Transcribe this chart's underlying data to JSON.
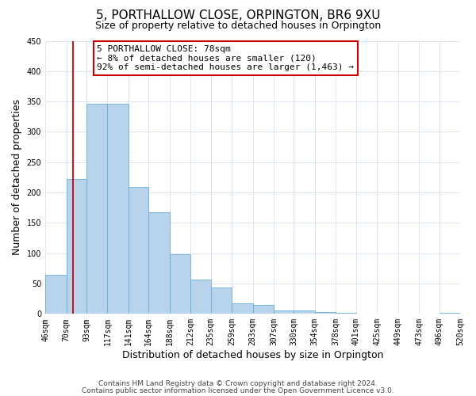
{
  "title": "5, PORTHALLOW CLOSE, ORPINGTON, BR6 9XU",
  "subtitle": "Size of property relative to detached houses in Orpington",
  "xlabel": "Distribution of detached houses by size in Orpington",
  "ylabel": "Number of detached properties",
  "bin_edges": [
    46,
    70,
    93,
    117,
    141,
    164,
    188,
    212,
    235,
    259,
    283,
    307,
    330,
    354,
    378,
    401,
    425,
    449,
    473,
    496,
    520
  ],
  "bin_labels": [
    "46sqm",
    "70sqm",
    "93sqm",
    "117sqm",
    "141sqm",
    "164sqm",
    "188sqm",
    "212sqm",
    "235sqm",
    "259sqm",
    "283sqm",
    "307sqm",
    "330sqm",
    "354sqm",
    "378sqm",
    "401sqm",
    "425sqm",
    "449sqm",
    "473sqm",
    "496sqm",
    "520sqm"
  ],
  "counts": [
    65,
    222,
    346,
    346,
    209,
    167,
    98,
    57,
    43,
    17,
    15,
    6,
    6,
    3,
    2,
    0,
    1,
    0,
    0,
    2
  ],
  "bar_color": "#b8d4ec",
  "bar_edge_color": "#6aaed6",
  "grid_color": "#dce6f0",
  "vline_x": 78,
  "vline_color": "#cc0000",
  "annotation_text": "5 PORTHALLOW CLOSE: 78sqm\n← 8% of detached houses are smaller (120)\n92% of semi-detached houses are larger (1,463) →",
  "annotation_box_color": "#ffffff",
  "annotation_box_edgecolor": "#cc0000",
  "ylim": [
    0,
    450
  ],
  "yticks": [
    0,
    50,
    100,
    150,
    200,
    250,
    300,
    350,
    400,
    450
  ],
  "footnote1": "Contains HM Land Registry data © Crown copyright and database right 2024.",
  "footnote2": "Contains public sector information licensed under the Open Government Licence v3.0.",
  "title_fontsize": 11,
  "subtitle_fontsize": 9,
  "axis_label_fontsize": 9,
  "tick_fontsize": 7,
  "annotation_fontsize": 8,
  "footnote_fontsize": 6.5
}
